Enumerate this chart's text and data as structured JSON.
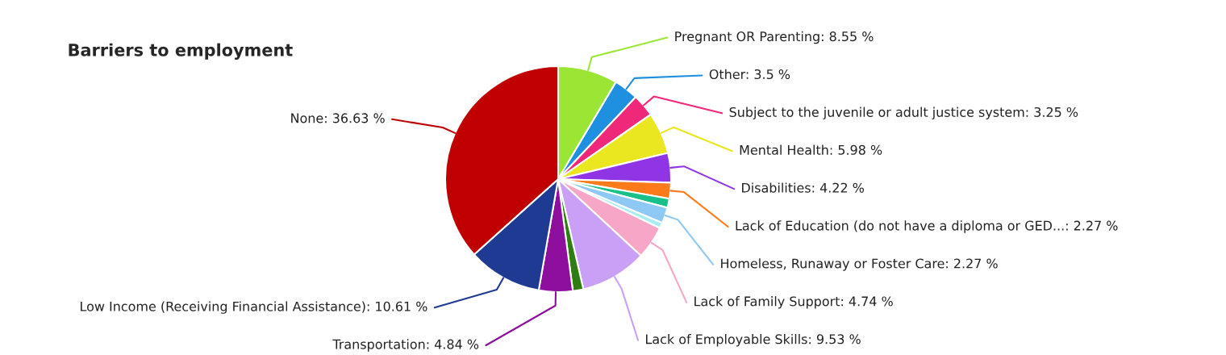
{
  "chart_data": {
    "type": "pie",
    "title": "Barriers to employment",
    "categories": [
      "Pregnant OR Parenting",
      "Other",
      "Subject to the juvenile or adult justice system",
      "Mental Health",
      "Disabilities",
      "Lack of Education (do not have a diploma or GED...",
      null,
      "Homeless, Runaway or Foster Care",
      null,
      "Lack of Family Support",
      "Lack of Employable Skills",
      null,
      "Transportation",
      "Low Income (Receiving Financial Assistance)",
      "None"
    ],
    "values": [
      8.55,
      3.5,
      3.25,
      5.98,
      4.22,
      2.27,
      1.3,
      2.27,
      0.8,
      4.74,
      9.53,
      1.51,
      4.84,
      10.61,
      36.63
    ],
    "value_labels": [
      "8.55 %",
      "3.5 %",
      "3.25 %",
      "5.98 %",
      "4.22 %",
      "2.27 %",
      null,
      "2.27 %",
      null,
      "4.74 %",
      "9.53 %",
      null,
      "4.84 %",
      "10.61 %",
      "36.63 %"
    ],
    "colors": [
      "#9be534",
      "#1f8fe0",
      "#f0287a",
      "#eae620",
      "#8f35e6",
      "#ff7a1a",
      "#19c08a",
      "#8ec8f5",
      "#a8eef0",
      "#f7a6c8",
      "#c9a0f5",
      "#2e7d12",
      "#8e0e9e",
      "#1f3a93",
      "#c00000"
    ]
  }
}
